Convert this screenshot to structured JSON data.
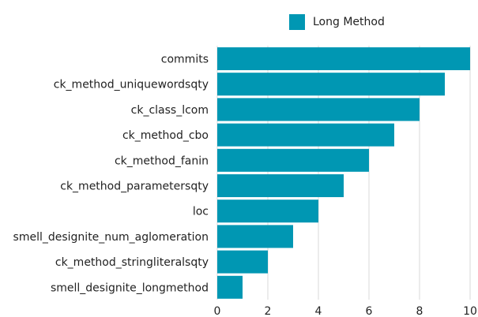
{
  "colors": {
    "bar": "#0097b3",
    "grid": "#d9d9d9",
    "text": "#222222"
  },
  "chart_data": {
    "type": "bar",
    "orientation": "horizontal",
    "title": "",
    "xlabel": "",
    "ylabel": "",
    "categories": [
      "commits",
      "ck_method_uniquewordsqty",
      "ck_class_lcom",
      "ck_method_cbo",
      "ck_method_fanin",
      "ck_method_parametersqty",
      "loc",
      "smell_designite_num_aglomeration",
      "ck_method_stringliteralsqty",
      "smell_designite_longmethod"
    ],
    "series": [
      {
        "name": "Long Method",
        "values": [
          10,
          9,
          8,
          7,
          6,
          5,
          4,
          3,
          2,
          1
        ]
      }
    ],
    "xlim": [
      0,
      10
    ],
    "xticks": [
      0,
      2,
      4,
      6,
      8,
      10
    ],
    "grid": true,
    "legend": "top-right"
  }
}
